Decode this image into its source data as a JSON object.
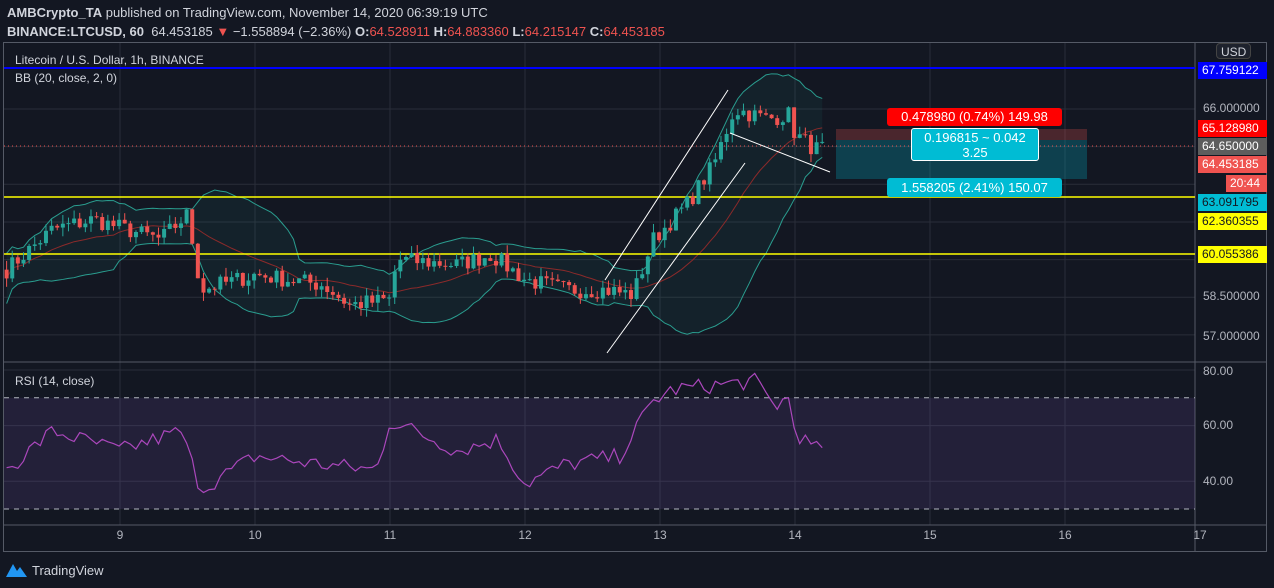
{
  "header": {
    "author": "AMBCrypto_TA",
    "published": "published on TradingView.com, November 14, 2020 06:39:19 UTC",
    "symbol": "BINANCE:LTCUSD, 60",
    "last": "64.453185",
    "arrow": "▼",
    "change": "−1.558894 (−2.36%)",
    "o_label": "O:",
    "o": "64.528911",
    "h_label": "H:",
    "h": "64.883360",
    "l_label": "L:",
    "l": "64.215147",
    "c_label": "C:",
    "c": "64.453185"
  },
  "chart_title": "Litecoin / U.S. Dollar, 1h, BINANCE",
  "bb_label": "BB (20, close, 2, 0)",
  "rsi_label": "RSI (14, close)",
  "currency": "USD",
  "price_labels": {
    "blue": "67.759122",
    "p66": "66.000000",
    "stop": "65.128980",
    "cross": "64.650000",
    "last": "64.453185",
    "countdown": "20:44",
    "target": "63.091795",
    "y1": "62.360355",
    "y2": "60.055386",
    "p585": "58.500000",
    "p57": "57.000000"
  },
  "rsi_axis": [
    "80.00",
    "60.00",
    "40.00"
  ],
  "time_axis": [
    "9",
    "10",
    "11",
    "12",
    "13",
    "14",
    "15",
    "16",
    "17"
  ],
  "position_tool": {
    "stop_text": "0.478980 (0.74%) 149.98",
    "center_line1": "0.196815 ~ 0.042",
    "center_line2": "3.25",
    "target_text": "1.558205 (2.41%) 150.07"
  },
  "footer": {
    "brand": "TradingView"
  },
  "colors": {
    "up": "#26a69a",
    "down": "#ef5350",
    "rsi": "#ab47bc",
    "bb": "#2a9d8f"
  },
  "chart_data": {
    "type": "candlestick",
    "x_unit": "day of November 2020",
    "price_waypoints": [
      [
        8.16,
        59.6
      ],
      [
        8.5,
        61.2
      ],
      [
        8.8,
        61.6
      ],
      [
        9.3,
        60.8
      ],
      [
        9.5,
        61.8
      ],
      [
        9.6,
        58.8
      ],
      [
        10.0,
        59.4
      ],
      [
        10.5,
        59.0
      ],
      [
        10.7,
        58.2
      ],
      [
        11.0,
        58.4
      ],
      [
        11.05,
        60.0
      ],
      [
        11.5,
        59.8
      ],
      [
        11.75,
        60.2
      ],
      [
        12.0,
        59.2
      ],
      [
        12.3,
        58.8
      ],
      [
        12.6,
        58.8
      ],
      [
        12.8,
        58.6
      ],
      [
        12.95,
        60.8
      ],
      [
        13.2,
        62.2
      ],
      [
        13.4,
        63.8
      ],
      [
        13.55,
        66.0
      ],
      [
        13.8,
        65.6
      ],
      [
        13.95,
        65.8
      ],
      [
        14.0,
        65.0
      ],
      [
        14.15,
        64.4
      ],
      [
        14.22,
        64.45
      ]
    ],
    "rsi_waypoints": [
      [
        8.16,
        44
      ],
      [
        8.5,
        58
      ],
      [
        9.0,
        51
      ],
      [
        9.45,
        58
      ],
      [
        9.6,
        37
      ],
      [
        10.0,
        49
      ],
      [
        10.5,
        46
      ],
      [
        10.9,
        44
      ],
      [
        11.0,
        62
      ],
      [
        11.5,
        51
      ],
      [
        11.8,
        55
      ],
      [
        12.0,
        39
      ],
      [
        12.3,
        46
      ],
      [
        12.7,
        49
      ],
      [
        12.95,
        69
      ],
      [
        13.1,
        73
      ],
      [
        13.5,
        75
      ],
      [
        13.7,
        76
      ],
      [
        13.85,
        67
      ],
      [
        13.95,
        70
      ],
      [
        14.0,
        58
      ],
      [
        14.15,
        51
      ],
      [
        14.22,
        54
      ]
    ],
    "rsi_bands": [
      30,
      70
    ],
    "y_range": [
      57,
      66
    ],
    "horizontal_levels": [
      67.759122,
      63.091795,
      60.055386
    ]
  }
}
